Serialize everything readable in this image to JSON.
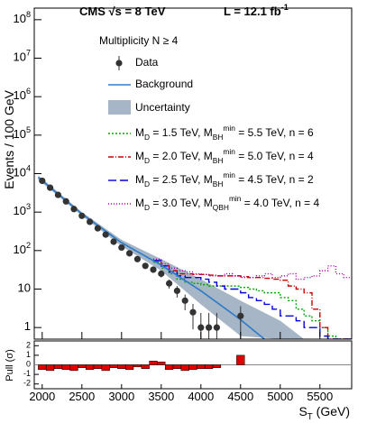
{
  "chart_data": {
    "type": "histogram",
    "title": "CMS √s = 8 TeV",
    "luminosity": "L = 12.1 fb^{-1}",
    "annotation": "Multiplicity N ≥ 4",
    "y_label": "Events / 100 GeV",
    "x_label": "S_{T} (GeV)",
    "pull_label": "Pull (σ)",
    "xlim": [
      1900,
      5900
    ],
    "xticks": [
      2000,
      2500,
      3000,
      3500,
      4000,
      4500,
      5000,
      5500
    ],
    "ylim": [
      0.5,
      200000000
    ],
    "log_y": true,
    "yticks": [
      1,
      10,
      {
        "value": 100,
        "label": "10^{2}"
      },
      {
        "value": 1000,
        "label": "10^{3}"
      },
      {
        "value": 10000,
        "label": "10^{4}"
      },
      {
        "value": 100000,
        "label": "10^{5}"
      },
      {
        "value": 1000000,
        "label": "10^{6}"
      },
      {
        "value": 10000000,
        "label": "10^{7}"
      },
      {
        "value": 100000000,
        "label": "10^{8}"
      }
    ],
    "data": {
      "name": "Data",
      "color": "#333333",
      "x": [
        2000,
        2100,
        2200,
        2300,
        2400,
        2500,
        2600,
        2700,
        2800,
        2900,
        3000,
        3100,
        3200,
        3300,
        3400,
        3500,
        3600,
        3700,
        3800,
        3900,
        4000,
        4100,
        4200,
        4300,
        4400,
        4500
      ],
      "values": [
        6500,
        4300,
        2800,
        1900,
        1200,
        800,
        560,
        380,
        260,
        170,
        120,
        85,
        60,
        40,
        32,
        25,
        14,
        9,
        5,
        2.5,
        1,
        1,
        1,
        null,
        null,
        2
      ],
      "errors": [
        80,
        65,
        53,
        44,
        35,
        28,
        24,
        19,
        16,
        13,
        11,
        9,
        8,
        6,
        5.7,
        5,
        3.7,
        3,
        2.2,
        1.6,
        1.4,
        1.4,
        1.4,
        null,
        null,
        1.6
      ],
      "pull": [
        -0.5,
        -0.6,
        -0.4,
        -0.5,
        -0.6,
        -0.3,
        -0.5,
        -0.4,
        -0.6,
        -0.3,
        -0.4,
        -0.5,
        -0.2,
        -0.4,
        0.4,
        0.3,
        -0.5,
        -0.4,
        -0.6,
        -0.5,
        -0.4,
        -0.4,
        -0.3,
        null,
        null,
        1.0
      ]
    },
    "background": {
      "name": "Background",
      "color": "#2b7bc9",
      "x": [
        1950,
        2500,
        3000,
        3500,
        4000,
        4500,
        4800
      ],
      "values": [
        8000,
        900,
        160,
        42,
        9,
        1.6,
        0.5
      ]
    },
    "uncertainty": {
      "name": "Uncertainty",
      "color": "#a7b6c6",
      "x": [
        1950,
        2500,
        3000,
        3500,
        4000,
        4500,
        5000,
        5300
      ],
      "low": [
        7000,
        800,
        130,
        30,
        4,
        0.6,
        0.5,
        0.5
      ],
      "high": [
        9000,
        1000,
        190,
        60,
        18,
        5,
        1.5,
        0.5
      ]
    },
    "pull_ylim": [
      -2.5,
      2.5
    ],
    "pull_yticks": [
      -2,
      -1,
      0,
      1,
      2
    ],
    "pull_color": "#e00000",
    "bins": [
      3400,
      3500,
      3600,
      3700,
      3800,
      3900,
      4000,
      4100,
      4200,
      4300,
      4400,
      4500,
      4600,
      4700,
      4800,
      4900,
      5000,
      5100,
      5200,
      5300,
      5400,
      5500,
      5600,
      5700,
      5800,
      5900
    ],
    "series": [
      {
        "name": "M_{D} = 1.5 TeV, M_{BH}^{min} = 5.5 TeV, n = 6",
        "color": "#00a800",
        "dash": "2,2",
        "values": [
          50,
          35,
          25,
          18,
          15,
          14,
          13,
          12,
          12,
          12,
          12,
          11,
          10,
          9,
          8,
          8,
          6,
          5,
          3,
          2,
          1.5,
          1,
          0.6,
          0.5,
          0.5
        ]
      },
      {
        "name": "M_{D} = 2.0 TeV, M_{BH}^{min} = 5.0 TeV, n = 4",
        "color": "#cc0000",
        "dash": "6,2,1,2",
        "values": [
          55,
          40,
          30,
          25,
          25,
          24,
          24,
          23,
          22,
          22,
          22,
          21,
          20,
          20,
          19,
          18,
          17,
          12,
          10,
          8,
          3,
          1,
          0.5,
          0.5,
          0.5
        ]
      },
      {
        "name": "M_{D} = 2.5 TeV, M_{BH}^{min} = 4.5 TeV, n = 2",
        "color": "#0000dd",
        "dash": "9,4",
        "values": [
          55,
          40,
          28,
          22,
          20,
          20,
          18,
          15,
          12,
          10,
          10,
          8,
          6,
          5,
          4,
          3,
          2,
          2,
          1.5,
          1,
          1,
          0.6,
          0.5,
          0.5,
          0.5
        ]
      },
      {
        "name": "M_{D} = 3.0 TeV, M_{QBH}^{min} = 4.0 TeV, n = 4",
        "color": "#a000a0",
        "dash": "1,2",
        "values": [
          60,
          45,
          35,
          30,
          28,
          25,
          24,
          22,
          22,
          25,
          22,
          20,
          20,
          22,
          25,
          20,
          22,
          25,
          18,
          20,
          22,
          30,
          40,
          25,
          20
        ]
      }
    ]
  }
}
